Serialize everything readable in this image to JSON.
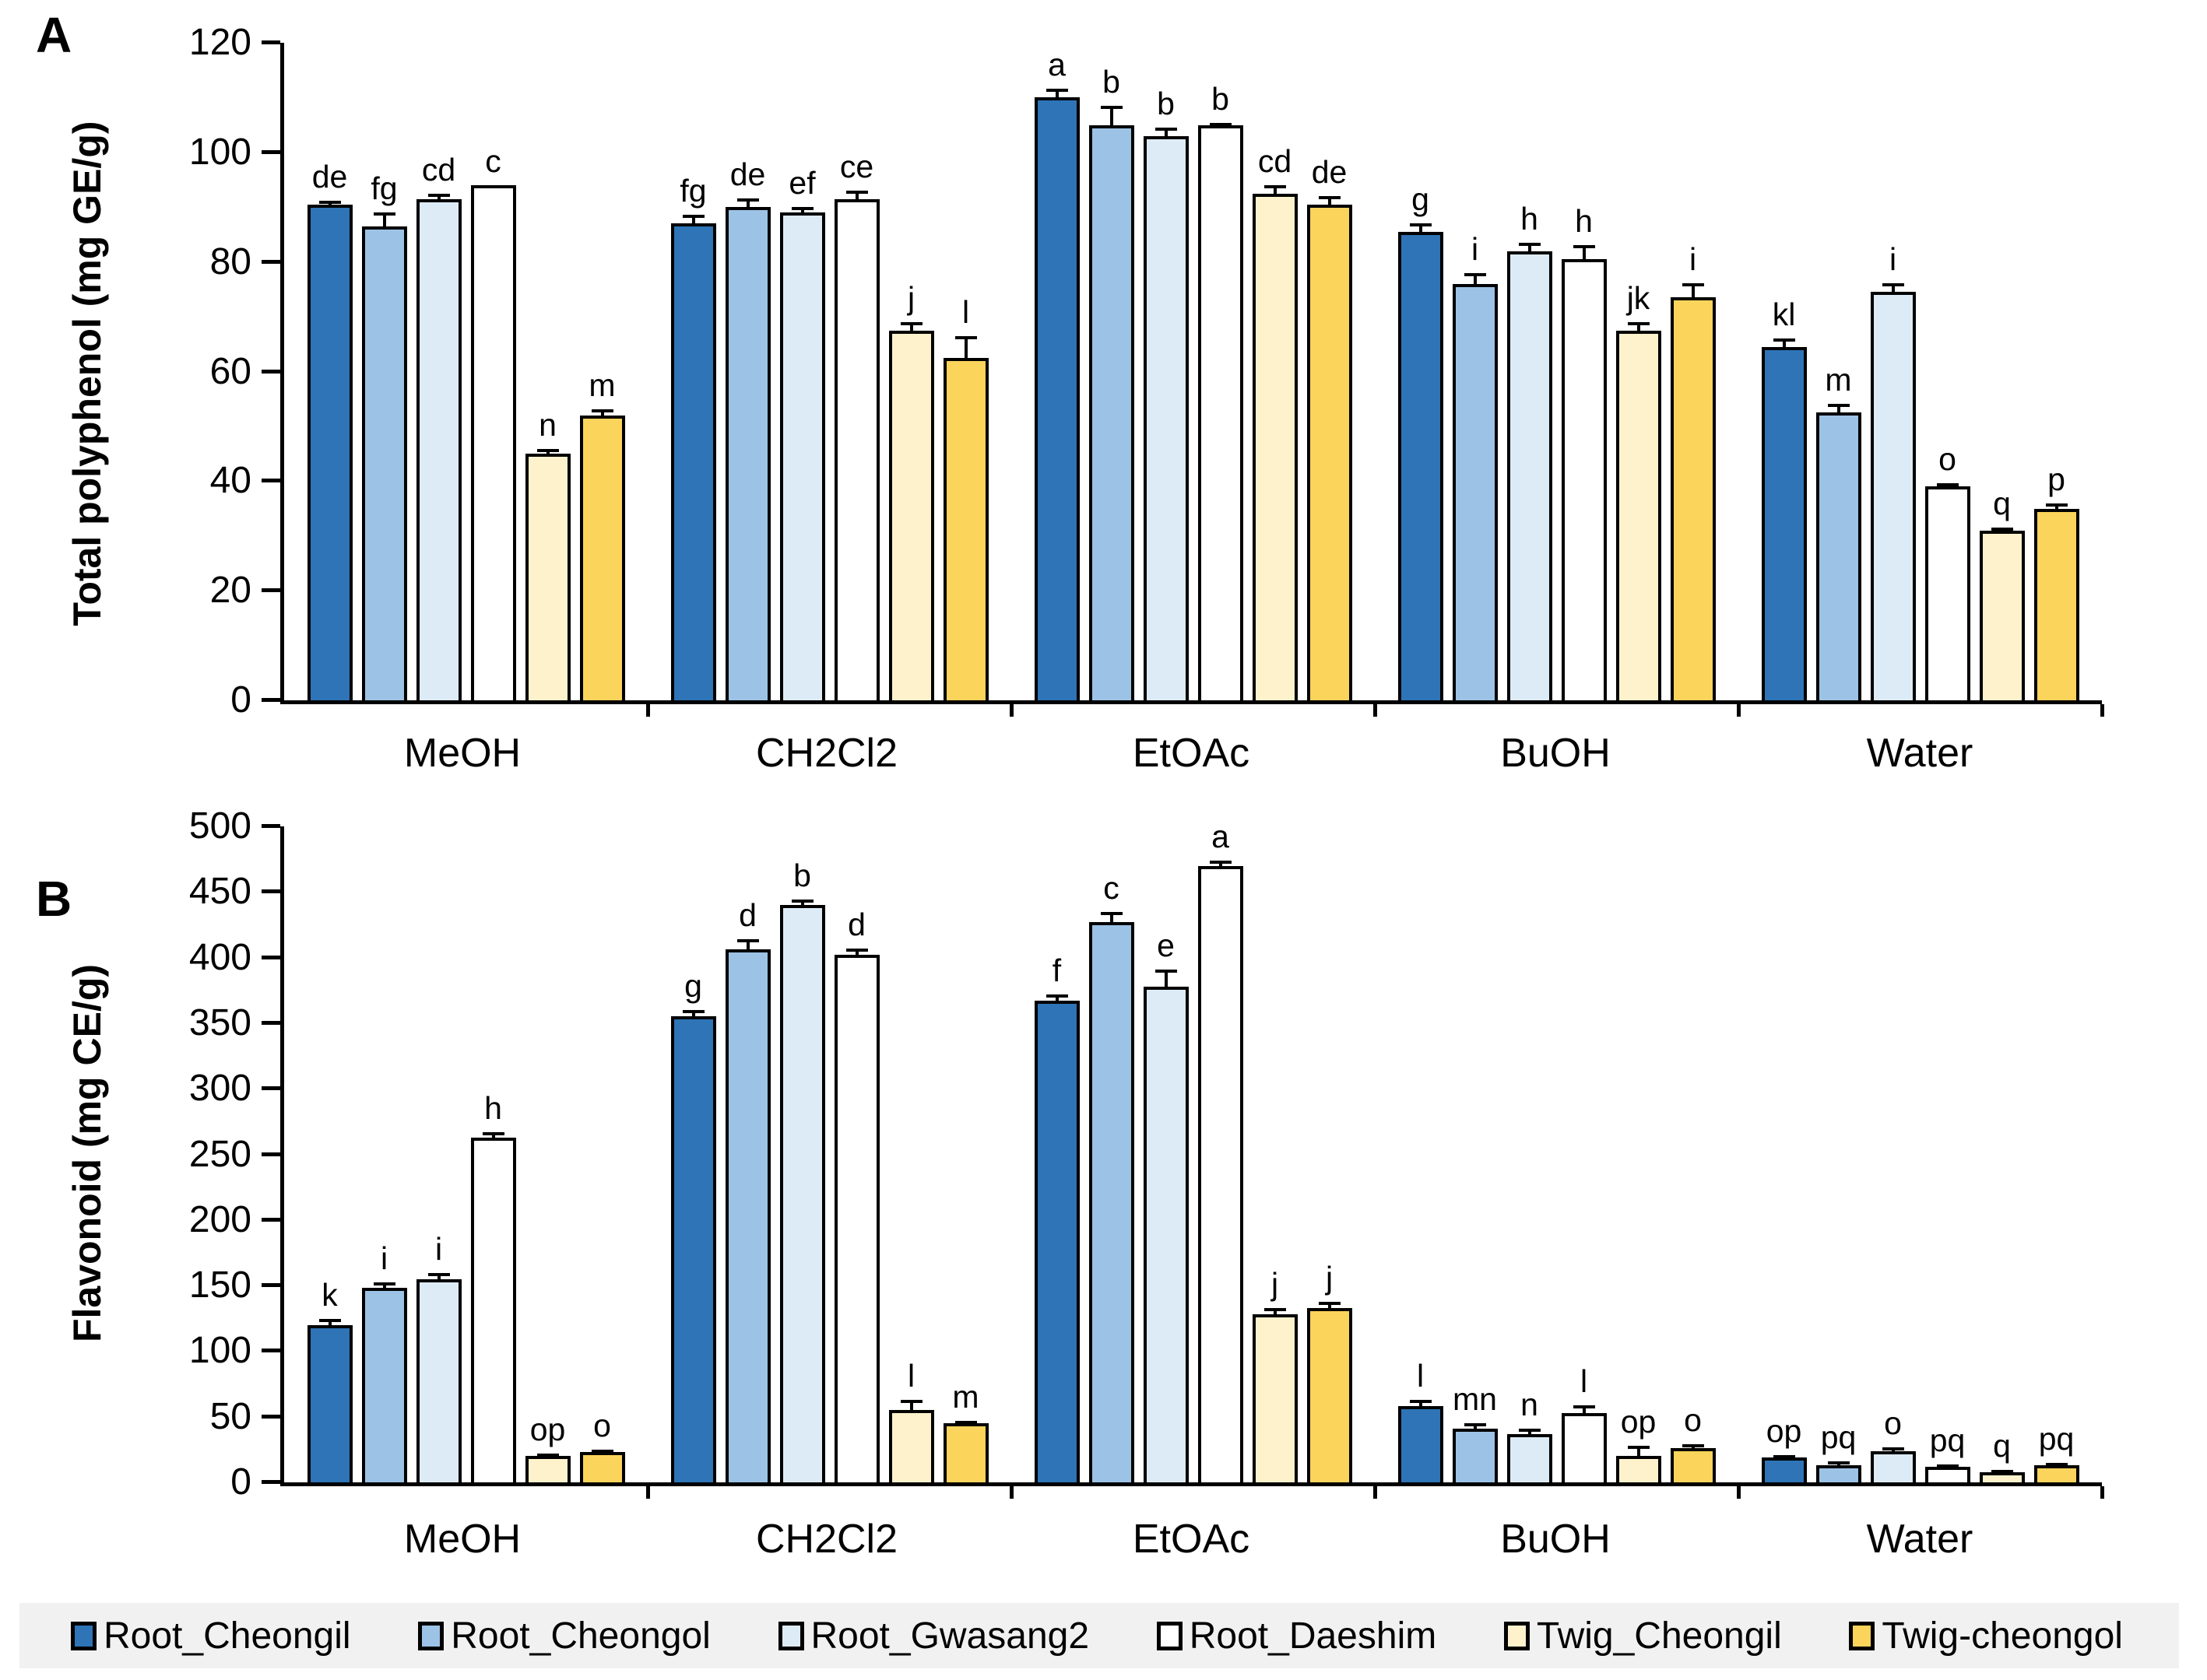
{
  "chart_data": [
    {
      "type": "bar",
      "title": "A",
      "ylabel": "Total polyphenol (mg GE/g)",
      "ylim": [
        0,
        120
      ],
      "yticks": [
        0,
        20,
        40,
        60,
        80,
        100,
        120
      ],
      "grid": false,
      "categories": [
        "MeOH",
        "CH2Cl2",
        "EtOAc",
        "BuOH",
        "Water"
      ],
      "series": [
        {
          "name": "Root_Cheongil",
          "color": "#2E74B6",
          "values": [
            90.5,
            87,
            110,
            85.5,
            64.5
          ],
          "errors": [
            0.7,
            1.5,
            1.5,
            1.5,
            1.5
          ],
          "letters": [
            "de",
            "fg",
            "a",
            "g",
            "kl"
          ]
        },
        {
          "name": "Root_Cheongol",
          "color": "#9CC3E6",
          "values": [
            86.5,
            90,
            105,
            76,
            52.5
          ],
          "errors": [
            2.5,
            1.5,
            3.5,
            2,
            1.5
          ],
          "letters": [
            "fg",
            "de",
            "b",
            "i",
            "m"
          ]
        },
        {
          "name": "Root_Gwasang2",
          "color": "#DDEBF6",
          "values": [
            91.5,
            89,
            103,
            82,
            74.5
          ],
          "errors": [
            1,
            1,
            1.5,
            1.5,
            1.5
          ],
          "letters": [
            "cd",
            "ef",
            "b",
            "h",
            "i"
          ]
        },
        {
          "name": "Root_Daeshim",
          "color": "#FFFFFF",
          "values": [
            94,
            91.5,
            105,
            80.5,
            39
          ],
          "errors": [
            0,
            1.5,
            0.4,
            2.5,
            0.5
          ],
          "letters": [
            "c",
            "ce",
            "b",
            "h",
            "o"
          ]
        },
        {
          "name": "Twig_Cheongil",
          "color": "#FDF2CC",
          "values": [
            45,
            67.5,
            92.5,
            67.5,
            31
          ],
          "errors": [
            0.8,
            1.5,
            1.5,
            1.5,
            0.5
          ],
          "letters": [
            "n",
            "j",
            "cd",
            "jk",
            "q"
          ]
        },
        {
          "name": "Twig-cheongol",
          "color": "#FBD45C",
          "values": [
            52,
            62.5,
            90.5,
            73.5,
            35
          ],
          "errors": [
            1.2,
            4,
            1.5,
            2.5,
            1
          ],
          "letters": [
            "m",
            "l",
            "de",
            "i",
            "p"
          ]
        }
      ]
    },
    {
      "type": "bar",
      "title": "B",
      "ylabel": "Flavonoid (mg CE/g)",
      "ylim": [
        0,
        500
      ],
      "yticks": [
        0,
        50,
        100,
        150,
        200,
        250,
        300,
        350,
        400,
        450,
        500
      ],
      "grid": false,
      "categories": [
        "MeOH",
        "CH2Cl2",
        "EtOAc",
        "BuOH",
        "Water"
      ],
      "series": [
        {
          "name": "Root_Cheongil",
          "color": "#2E74B6",
          "values": [
            120,
            355,
            367,
            58,
            19
          ],
          "errors": [
            5,
            5,
            5,
            5,
            2
          ],
          "letters": [
            "k",
            "g",
            "f",
            "l",
            "op"
          ]
        },
        {
          "name": "Root_Cheongol",
          "color": "#9CC3E6",
          "values": [
            148,
            406,
            427,
            41,
            13
          ],
          "errors": [
            4,
            8,
            8,
            4,
            3
          ],
          "letters": [
            "i",
            "d",
            "c",
            "mn",
            "pq"
          ]
        },
        {
          "name": "Root_Gwasang2",
          "color": "#DDEBF6",
          "values": [
            155,
            440,
            378,
            37,
            24
          ],
          "errors": [
            5,
            4,
            13,
            4,
            3
          ],
          "letters": [
            "i",
            "b",
            "e",
            "n",
            "o"
          ]
        },
        {
          "name": "Root_Daeshim",
          "color": "#FFFFFF",
          "values": [
            263,
            402,
            470,
            53,
            12
          ],
          "errors": [
            4,
            5,
            4,
            6,
            2
          ],
          "letters": [
            "h",
            "d",
            "a",
            "l",
            "pq"
          ]
        },
        {
          "name": "Twig_Cheongil",
          "color": "#FDF2CC",
          "values": [
            20,
            55,
            128,
            20,
            8
          ],
          "errors": [
            2,
            8,
            5,
            8,
            2
          ],
          "letters": [
            "op",
            "l",
            "j",
            "op",
            "q"
          ]
        },
        {
          "name": "Twig-cheongol",
          "color": "#FBD45C",
          "values": [
            23,
            45,
            133,
            26,
            13
          ],
          "errors": [
            2,
            2,
            5,
            3,
            2
          ],
          "letters": [
            "o",
            "m",
            "j",
            "o",
            "pq"
          ]
        }
      ]
    }
  ],
  "legend": {
    "background": "#F1F1F1",
    "items": [
      {
        "label": "Root_Cheongil",
        "color": "#2E74B6"
      },
      {
        "label": "Root_Cheongol",
        "color": "#9CC3E6"
      },
      {
        "label": "Root_Gwasang2",
        "color": "#DDEBF6"
      },
      {
        "label": "Root_Daeshim",
        "color": "#FFFFFF"
      },
      {
        "label": "Twig_Cheongil",
        "color": "#FDF2CC"
      },
      {
        "label": "Twig-cheongol",
        "color": "#FBD45C"
      }
    ]
  }
}
